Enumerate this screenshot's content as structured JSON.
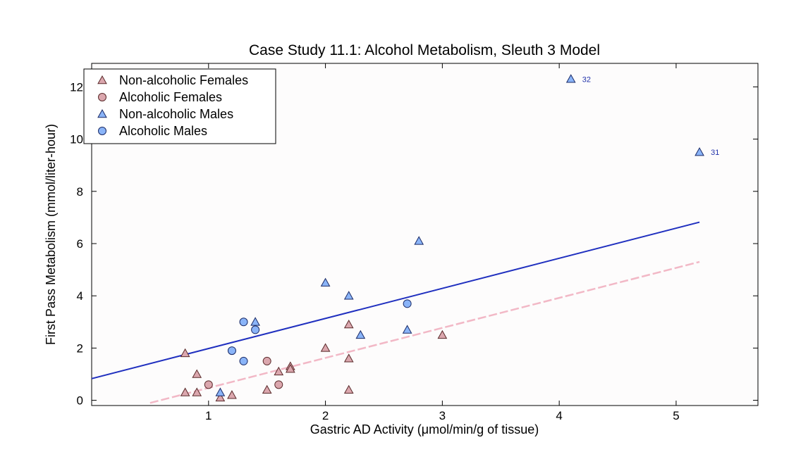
{
  "chart_data": {
    "type": "scatter",
    "title": "Case Study 11.1: Alcohol Metabolism, Sleuth 3 Model",
    "xlabel": "Gastric AD Activity (μmol/min/g of tissue)",
    "ylabel": "First Pass Metabolism (mmol/liter-hour)",
    "xlim": [
      0,
      5.7
    ],
    "ylim": [
      -0.2,
      12.9
    ],
    "xticks": [
      1,
      2,
      3,
      4,
      5
    ],
    "yticks": [
      0,
      2,
      4,
      6,
      8,
      10,
      12
    ],
    "grid": false,
    "legend_position": "top-left",
    "series": [
      {
        "name": "Non-alcoholic Females",
        "marker": "triangle",
        "fill": "#dba7ae",
        "stroke": "#5a2a2a",
        "points": [
          [
            0.8,
            1.8
          ],
          [
            0.8,
            0.3
          ],
          [
            0.9,
            1.0
          ],
          [
            0.9,
            0.3
          ],
          [
            1.1,
            0.1
          ],
          [
            1.2,
            0.2
          ],
          [
            1.5,
            0.4
          ],
          [
            1.6,
            1.1
          ],
          [
            1.7,
            1.3
          ],
          [
            1.7,
            1.2
          ],
          [
            2.0,
            2.0
          ],
          [
            2.2,
            2.9
          ],
          [
            2.2,
            1.6
          ],
          [
            2.2,
            0.4
          ],
          [
            3.0,
            2.5
          ]
        ]
      },
      {
        "name": "Alcoholic Females",
        "marker": "circle",
        "fill": "#dba7ae",
        "stroke": "#5a2a2a",
        "points": [
          [
            1.0,
            0.6
          ],
          [
            1.5,
            1.5
          ],
          [
            1.6,
            0.6
          ]
        ]
      },
      {
        "name": "Non-alcoholic Males",
        "marker": "triangle",
        "fill": "#8ab4f8",
        "stroke": "#1a2a66",
        "points": [
          [
            1.1,
            0.3
          ],
          [
            1.4,
            3.0
          ],
          [
            2.0,
            4.5
          ],
          [
            2.2,
            4.0
          ],
          [
            2.3,
            2.5
          ],
          [
            2.7,
            2.7
          ],
          [
            2.8,
            6.1
          ],
          [
            4.1,
            12.3
          ],
          [
            5.2,
            9.5
          ]
        ]
      },
      {
        "name": "Alcoholic Males",
        "marker": "circle",
        "fill": "#8ab4f8",
        "stroke": "#1a2a66",
        "points": [
          [
            1.2,
            1.9
          ],
          [
            1.3,
            3.0
          ],
          [
            1.3,
            1.5
          ],
          [
            1.4,
            2.7
          ],
          [
            2.7,
            3.7
          ]
        ]
      }
    ],
    "lines": [
      {
        "name": "Males fit",
        "color": "#1f2fbf",
        "dash": false,
        "x": [
          0.0,
          5.2
        ],
        "y": [
          0.83,
          6.82
        ]
      },
      {
        "name": "Females fit",
        "color": "#f2b8c6",
        "dash": true,
        "x": [
          0.5,
          5.2
        ],
        "y": [
          -0.1,
          5.3
        ]
      }
    ],
    "annotations": [
      {
        "text": "32",
        "x": 4.1,
        "y": 12.3
      },
      {
        "text": "31",
        "x": 5.2,
        "y": 9.5
      }
    ]
  }
}
